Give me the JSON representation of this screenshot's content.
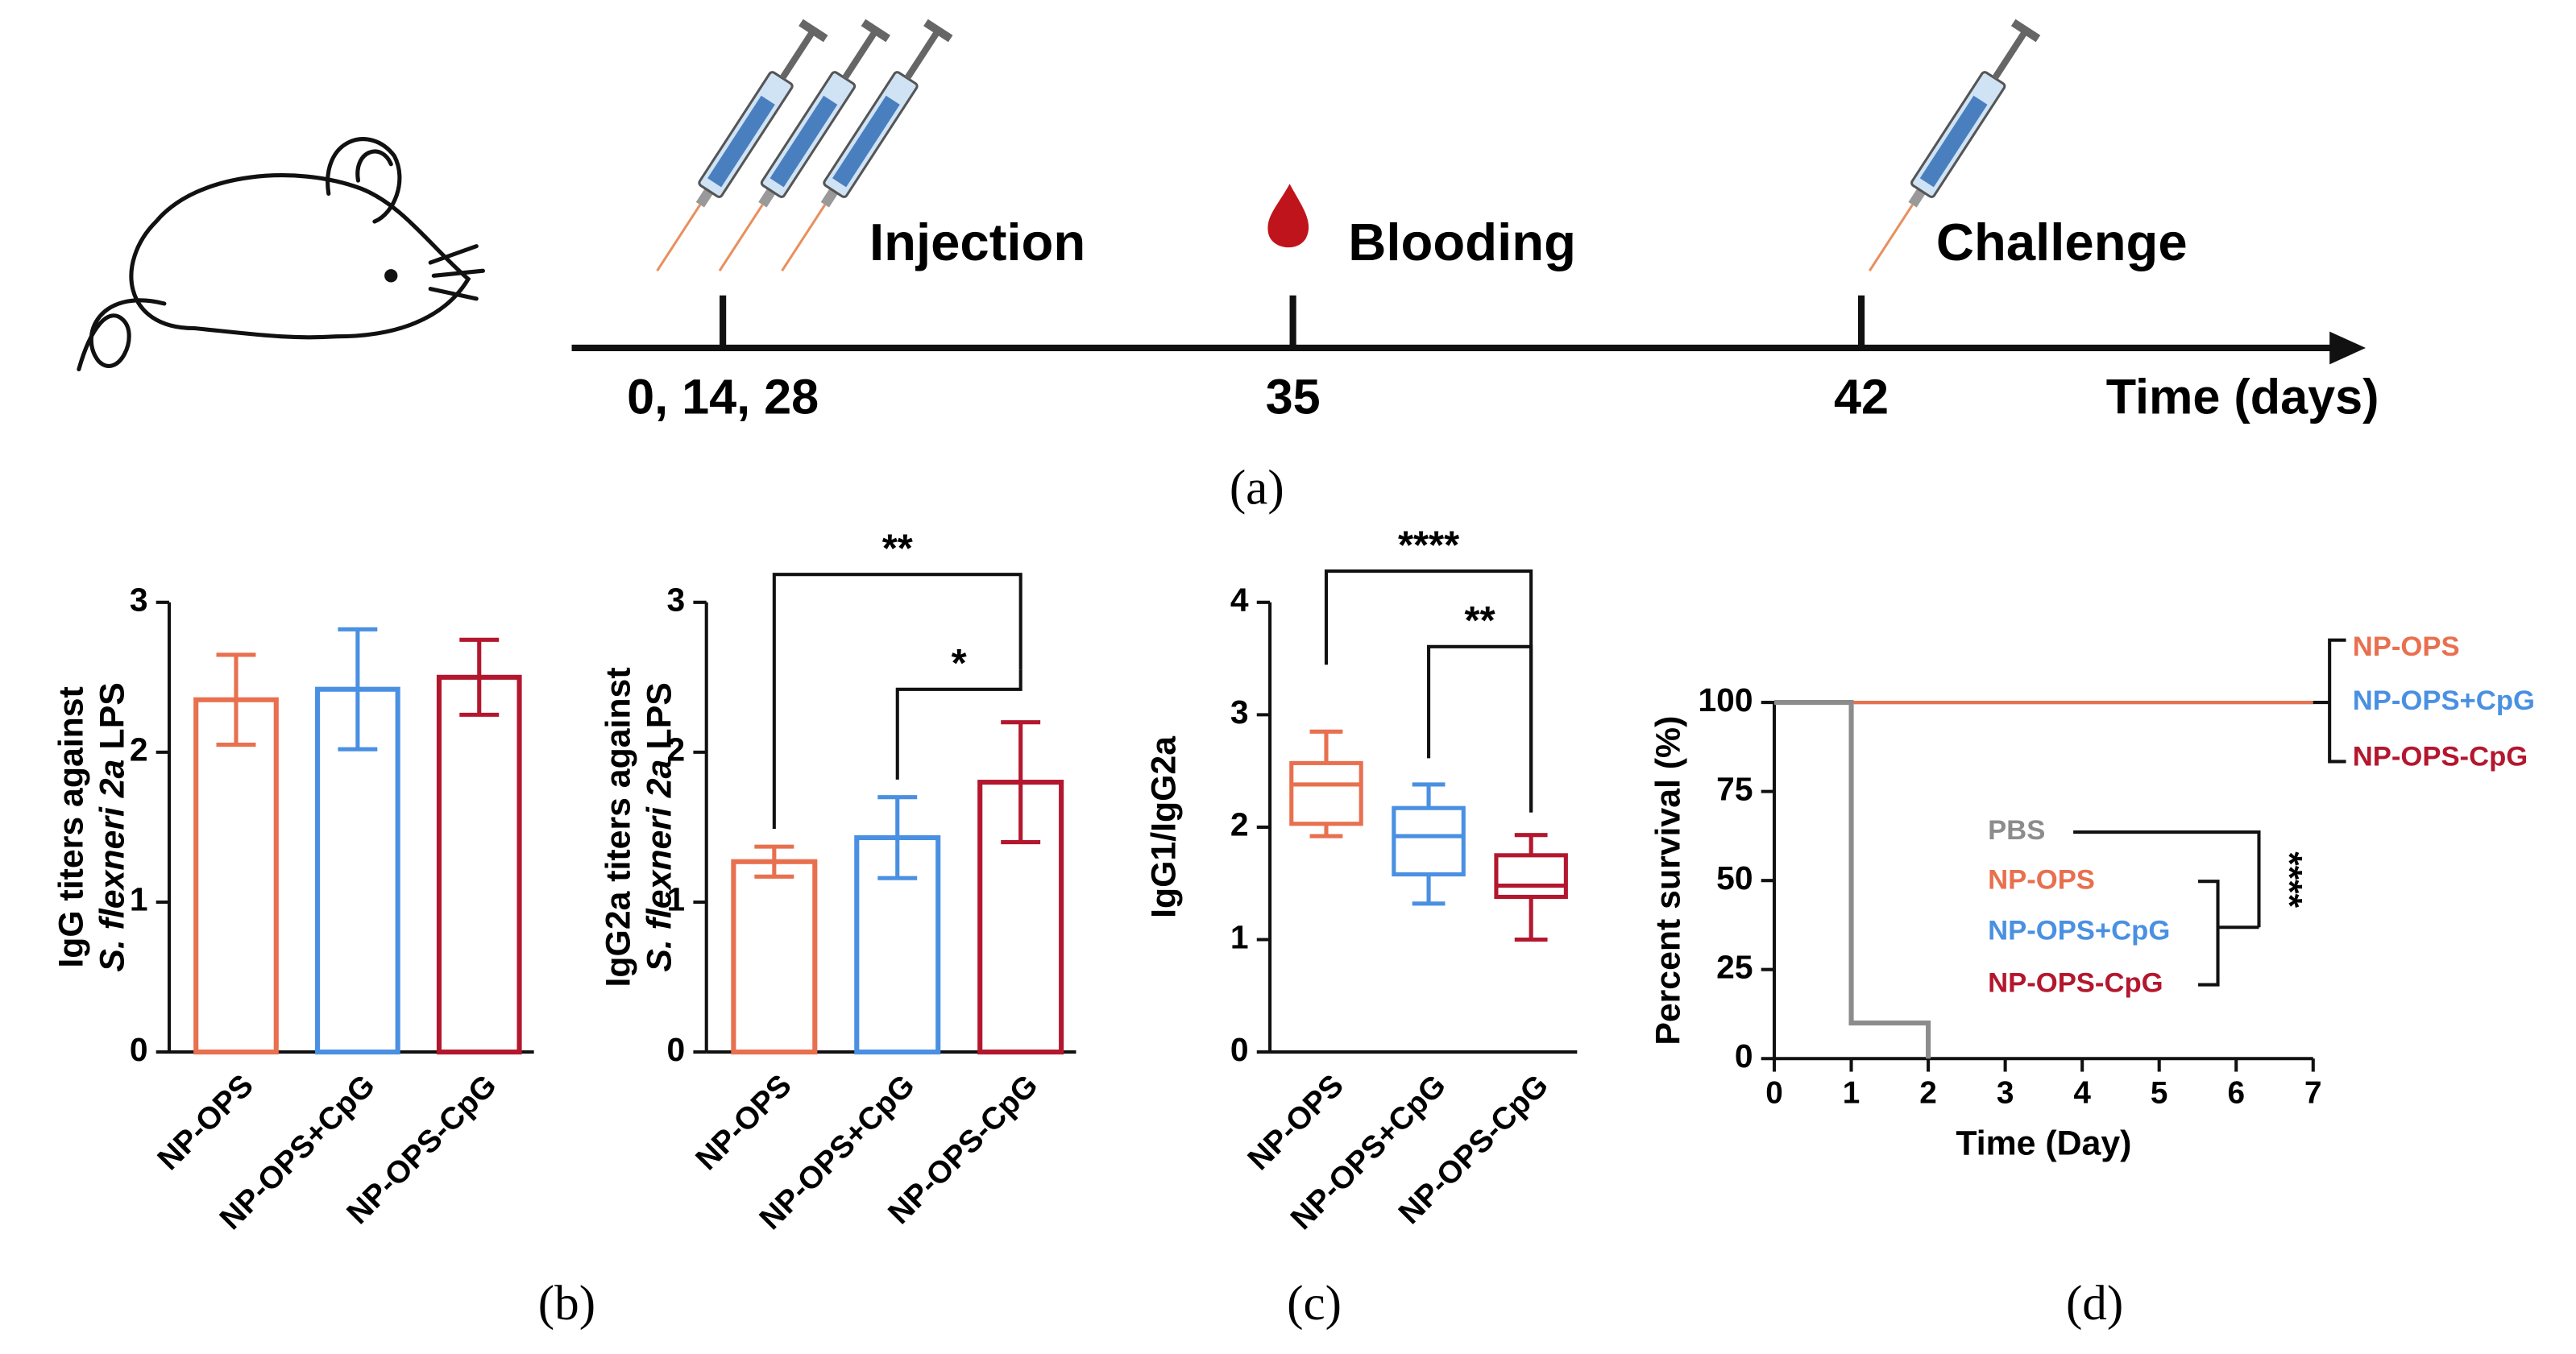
{
  "timeline": {
    "events": [
      {
        "label": "Injection",
        "day": "0, 14, 28"
      },
      {
        "label": "Blooding",
        "day": "35"
      },
      {
        "label": "Challenge",
        "day": "42"
      }
    ],
    "axis_label": "Time (days)"
  },
  "panel_labels": [
    "(a)",
    "(b)",
    "(c)",
    "(d)"
  ],
  "chart_data": [
    {
      "type": "bar",
      "ylabel": [
        "IgG titers against",
        "S. flexneri 2a",
        "LPS"
      ],
      "categories": [
        "NP-OPS",
        "NP-OPS+CpG",
        "NP-OPS-CpG"
      ],
      "values": [
        2.35,
        2.42,
        2.5
      ],
      "errors": [
        0.3,
        0.4,
        0.25
      ],
      "colors": [
        "#e8704f",
        "#4a90e2",
        "#b3172e"
      ],
      "ylim": [
        0,
        3
      ],
      "yticks": [
        0,
        1,
        2,
        3
      ]
    },
    {
      "type": "bar",
      "ylabel": [
        "IgG2a titers against",
        "S. flexneri 2a",
        "LPS"
      ],
      "categories": [
        "NP-OPS",
        "NP-OPS+CpG",
        "NP-OPS-CpG"
      ],
      "values": [
        1.27,
        1.43,
        1.8
      ],
      "errors": [
        0.1,
        0.27,
        0.4
      ],
      "colors": [
        "#e8704f",
        "#4a90e2",
        "#b3172e"
      ],
      "ylim": [
        0,
        3
      ],
      "yticks": [
        0,
        1,
        2,
        3
      ],
      "annotations": [
        "**",
        "*"
      ]
    },
    {
      "type": "box",
      "ylabel": [
        "IgG1/IgG2a"
      ],
      "categories": [
        "NP-OPS",
        "NP-OPS+CpG",
        "NP-OPS-CpG"
      ],
      "boxes": [
        {
          "min": 1.92,
          "q1": 2.03,
          "median": 2.38,
          "q3": 2.57,
          "max": 2.85
        },
        {
          "min": 1.32,
          "q1": 1.58,
          "median": 1.92,
          "q3": 2.17,
          "max": 2.38
        },
        {
          "min": 1.0,
          "q1": 1.38,
          "median": 1.48,
          "q3": 1.75,
          "max": 1.93
        }
      ],
      "colors": [
        "#e8704f",
        "#4a90e2",
        "#b3172e"
      ],
      "ylim": [
        0,
        4
      ],
      "yticks": [
        0,
        1,
        2,
        3,
        4
      ],
      "annotations": [
        "****",
        "**"
      ]
    },
    {
      "type": "line",
      "ylabel": [
        "Percent survival (%)"
      ],
      "xlabel": "Time (Day)",
      "series": [
        {
          "name": "PBS",
          "color": "#8c8c8c",
          "x": [
            0,
            1,
            1,
            2,
            2
          ],
          "values": [
            100,
            100,
            10,
            10,
            0
          ]
        },
        {
          "name": "NP-OPS",
          "color": "#e8704f",
          "x": [
            0,
            7
          ],
          "values": [
            100,
            100
          ]
        },
        {
          "name": "NP-OPS+CpG",
          "color": "#4a90e2",
          "x": [
            0,
            7
          ],
          "values": [
            100,
            100
          ]
        },
        {
          "name": "NP-OPS-CpG",
          "color": "#b3172e",
          "x": [
            0,
            7
          ],
          "values": [
            100,
            100
          ]
        }
      ],
      "xlim": [
        0,
        7
      ],
      "xticks": [
        0,
        1,
        2,
        3,
        4,
        5,
        6,
        7
      ],
      "ylim": [
        0,
        100
      ],
      "yticks": [
        0,
        25,
        50,
        75,
        100
      ],
      "annotations": [
        "****"
      ]
    }
  ]
}
